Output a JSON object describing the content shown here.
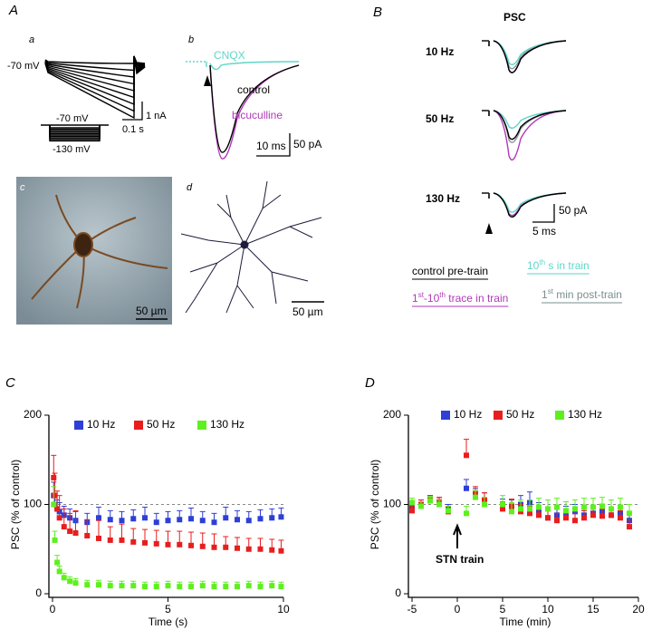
{
  "panel_a": {
    "label": "A",
    "a": {
      "label": "a",
      "holding": "-70 mV",
      "current_scale": "1 nA",
      "time_scale": "0.1 s",
      "step_top": "-70 mV",
      "step_bottom": "-130 mV"
    },
    "b": {
      "label": "b",
      "cnqx": "CNQX",
      "control": "control",
      "bicuculline": "bicuculline",
      "time_scale": "10 ms",
      "current_scale": "50 pA"
    },
    "c": {
      "label": "c",
      "scale": "50 µm"
    },
    "d": {
      "label": "d",
      "scale": "50 µm"
    }
  },
  "panel_b": {
    "label": "B",
    "title": "PSC",
    "rows": [
      "10 Hz",
      "50 Hz",
      "130 Hz"
    ],
    "current_scale": "50 pA",
    "time_scale": "5 ms",
    "legend": [
      {
        "color": "#000000",
        "parts": [
          {
            "text": "control pre-train"
          }
        ]
      },
      {
        "color": "#5fd6c8",
        "parts": [
          {
            "text": "10"
          },
          {
            "text": "th",
            "sup": true
          },
          {
            "text": " s in train"
          }
        ]
      },
      {
        "color": "#b03ab8",
        "parts": [
          {
            "text": "1"
          },
          {
            "text": "st",
            "sup": true
          },
          {
            "text": "-10"
          },
          {
            "text": "th",
            "sup": true
          },
          {
            "text": " trace in train"
          }
        ]
      },
      {
        "color": "#7a8f8c",
        "parts": [
          {
            "text": "1"
          },
          {
            "text": "st",
            "sup": true
          },
          {
            "text": " min post-train"
          }
        ]
      }
    ]
  },
  "chart_data": [
    {
      "type": "scatter",
      "panel": "C",
      "x_label": "Time (s)",
      "y_label": "PSC (% of control)",
      "xlim": [
        0,
        10
      ],
      "xticks": [
        0,
        5,
        10
      ],
      "ylim": [
        0,
        200
      ],
      "yticks": [
        0,
        100,
        200
      ],
      "reference": 100,
      "x": [
        0.05,
        0.1,
        0.2,
        0.3,
        0.5,
        0.75,
        1,
        1.5,
        2,
        2.5,
        3,
        3.5,
        4,
        4.5,
        5,
        5.5,
        6,
        6.5,
        7,
        7.5,
        8,
        8.5,
        9,
        9.5,
        9.9
      ],
      "series": [
        {
          "name": "10 Hz",
          "color": "#2e3fd6",
          "values": [
            110,
            100,
            95,
            92,
            88,
            85,
            82,
            80,
            85,
            83,
            82,
            84,
            85,
            80,
            82,
            83,
            84,
            82,
            80,
            85,
            83,
            82,
            84,
            85,
            86
          ],
          "errors": [
            15,
            12,
            10,
            10,
            10,
            10,
            10,
            10,
            12,
            10,
            10,
            10,
            12,
            10,
            10,
            10,
            12,
            10,
            10,
            12,
            10,
            10,
            10,
            10,
            10
          ]
        },
        {
          "name": "50 Hz",
          "color": "#e81e1e",
          "values": [
            130,
            110,
            95,
            85,
            75,
            70,
            68,
            65,
            62,
            60,
            60,
            58,
            57,
            56,
            55,
            55,
            54,
            53,
            52,
            52,
            51,
            50,
            50,
            49,
            48
          ],
          "errors": [
            25,
            25,
            20,
            25,
            20,
            20,
            25,
            18,
            20,
            15,
            18,
            15,
            15,
            15,
            15,
            15,
            15,
            15,
            15,
            12,
            12,
            12,
            12,
            12,
            12
          ]
        },
        {
          "name": "130 Hz",
          "color": "#5ef01e",
          "values": [
            100,
            60,
            35,
            25,
            18,
            14,
            12,
            10,
            10,
            9,
            9,
            9,
            8,
            8,
            9,
            8,
            8,
            9,
            8,
            8,
            8,
            9,
            8,
            9,
            8
          ],
          "errors": [
            20,
            10,
            8,
            6,
            5,
            5,
            5,
            5,
            5,
            5,
            5,
            5,
            5,
            5,
            5,
            5,
            5,
            5,
            5,
            5,
            5,
            5,
            5,
            5,
            5
          ]
        }
      ]
    },
    {
      "type": "scatter",
      "panel": "D",
      "x_label": "Time (min)",
      "y_label": "PSC (% of control)",
      "xlim": [
        -5,
        20
      ],
      "xticks": [
        -5,
        0,
        5,
        10,
        15,
        20
      ],
      "ylim": [
        0,
        200
      ],
      "yticks": [
        0,
        100,
        200
      ],
      "reference": 100,
      "annotations": [
        {
          "text": "STN train",
          "x": 0
        }
      ],
      "x": [
        -5,
        -4,
        -3,
        -2,
        -1,
        1,
        2,
        3,
        5,
        6,
        7,
        8,
        9,
        10,
        11,
        12,
        13,
        14,
        15,
        16,
        17,
        18,
        19
      ],
      "series": [
        {
          "name": "10 Hz",
          "color": "#2e3fd6",
          "values": [
            97,
            100,
            105,
            103,
            95,
            118,
            110,
            105,
            98,
            97,
            100,
            102,
            92,
            85,
            88,
            90,
            92,
            88,
            90,
            92,
            88,
            90,
            82
          ],
          "errors": [
            5,
            5,
            5,
            5,
            5,
            10,
            8,
            8,
            8,
            8,
            10,
            12,
            10,
            10,
            10,
            8,
            8,
            8,
            8,
            8,
            8,
            8,
            8
          ]
        },
        {
          "name": "50 Hz",
          "color": "#e81e1e",
          "values": [
            93,
            100,
            105,
            103,
            92,
            155,
            112,
            105,
            95,
            98,
            92,
            90,
            88,
            85,
            82,
            85,
            82,
            85,
            88,
            87,
            88,
            85,
            75
          ],
          "errors": [
            5,
            5,
            5,
            5,
            5,
            18,
            8,
            8,
            8,
            8,
            8,
            8,
            8,
            8,
            8,
            8,
            8,
            8,
            8,
            8,
            8,
            8,
            8
          ]
        },
        {
          "name": "130 Hz",
          "color": "#5ef01e",
          "values": [
            102,
            98,
            104,
            100,
            93,
            90,
            108,
            100,
            100,
            92,
            95,
            95,
            97,
            95,
            97,
            93,
            95,
            97,
            97,
            98,
            95,
            97,
            90
          ],
          "errors": [
            5,
            5,
            5,
            5,
            5,
            8,
            8,
            8,
            10,
            10,
            10,
            10,
            10,
            10,
            10,
            10,
            10,
            10,
            10,
            10,
            10,
            10,
            10
          ]
        }
      ]
    }
  ]
}
